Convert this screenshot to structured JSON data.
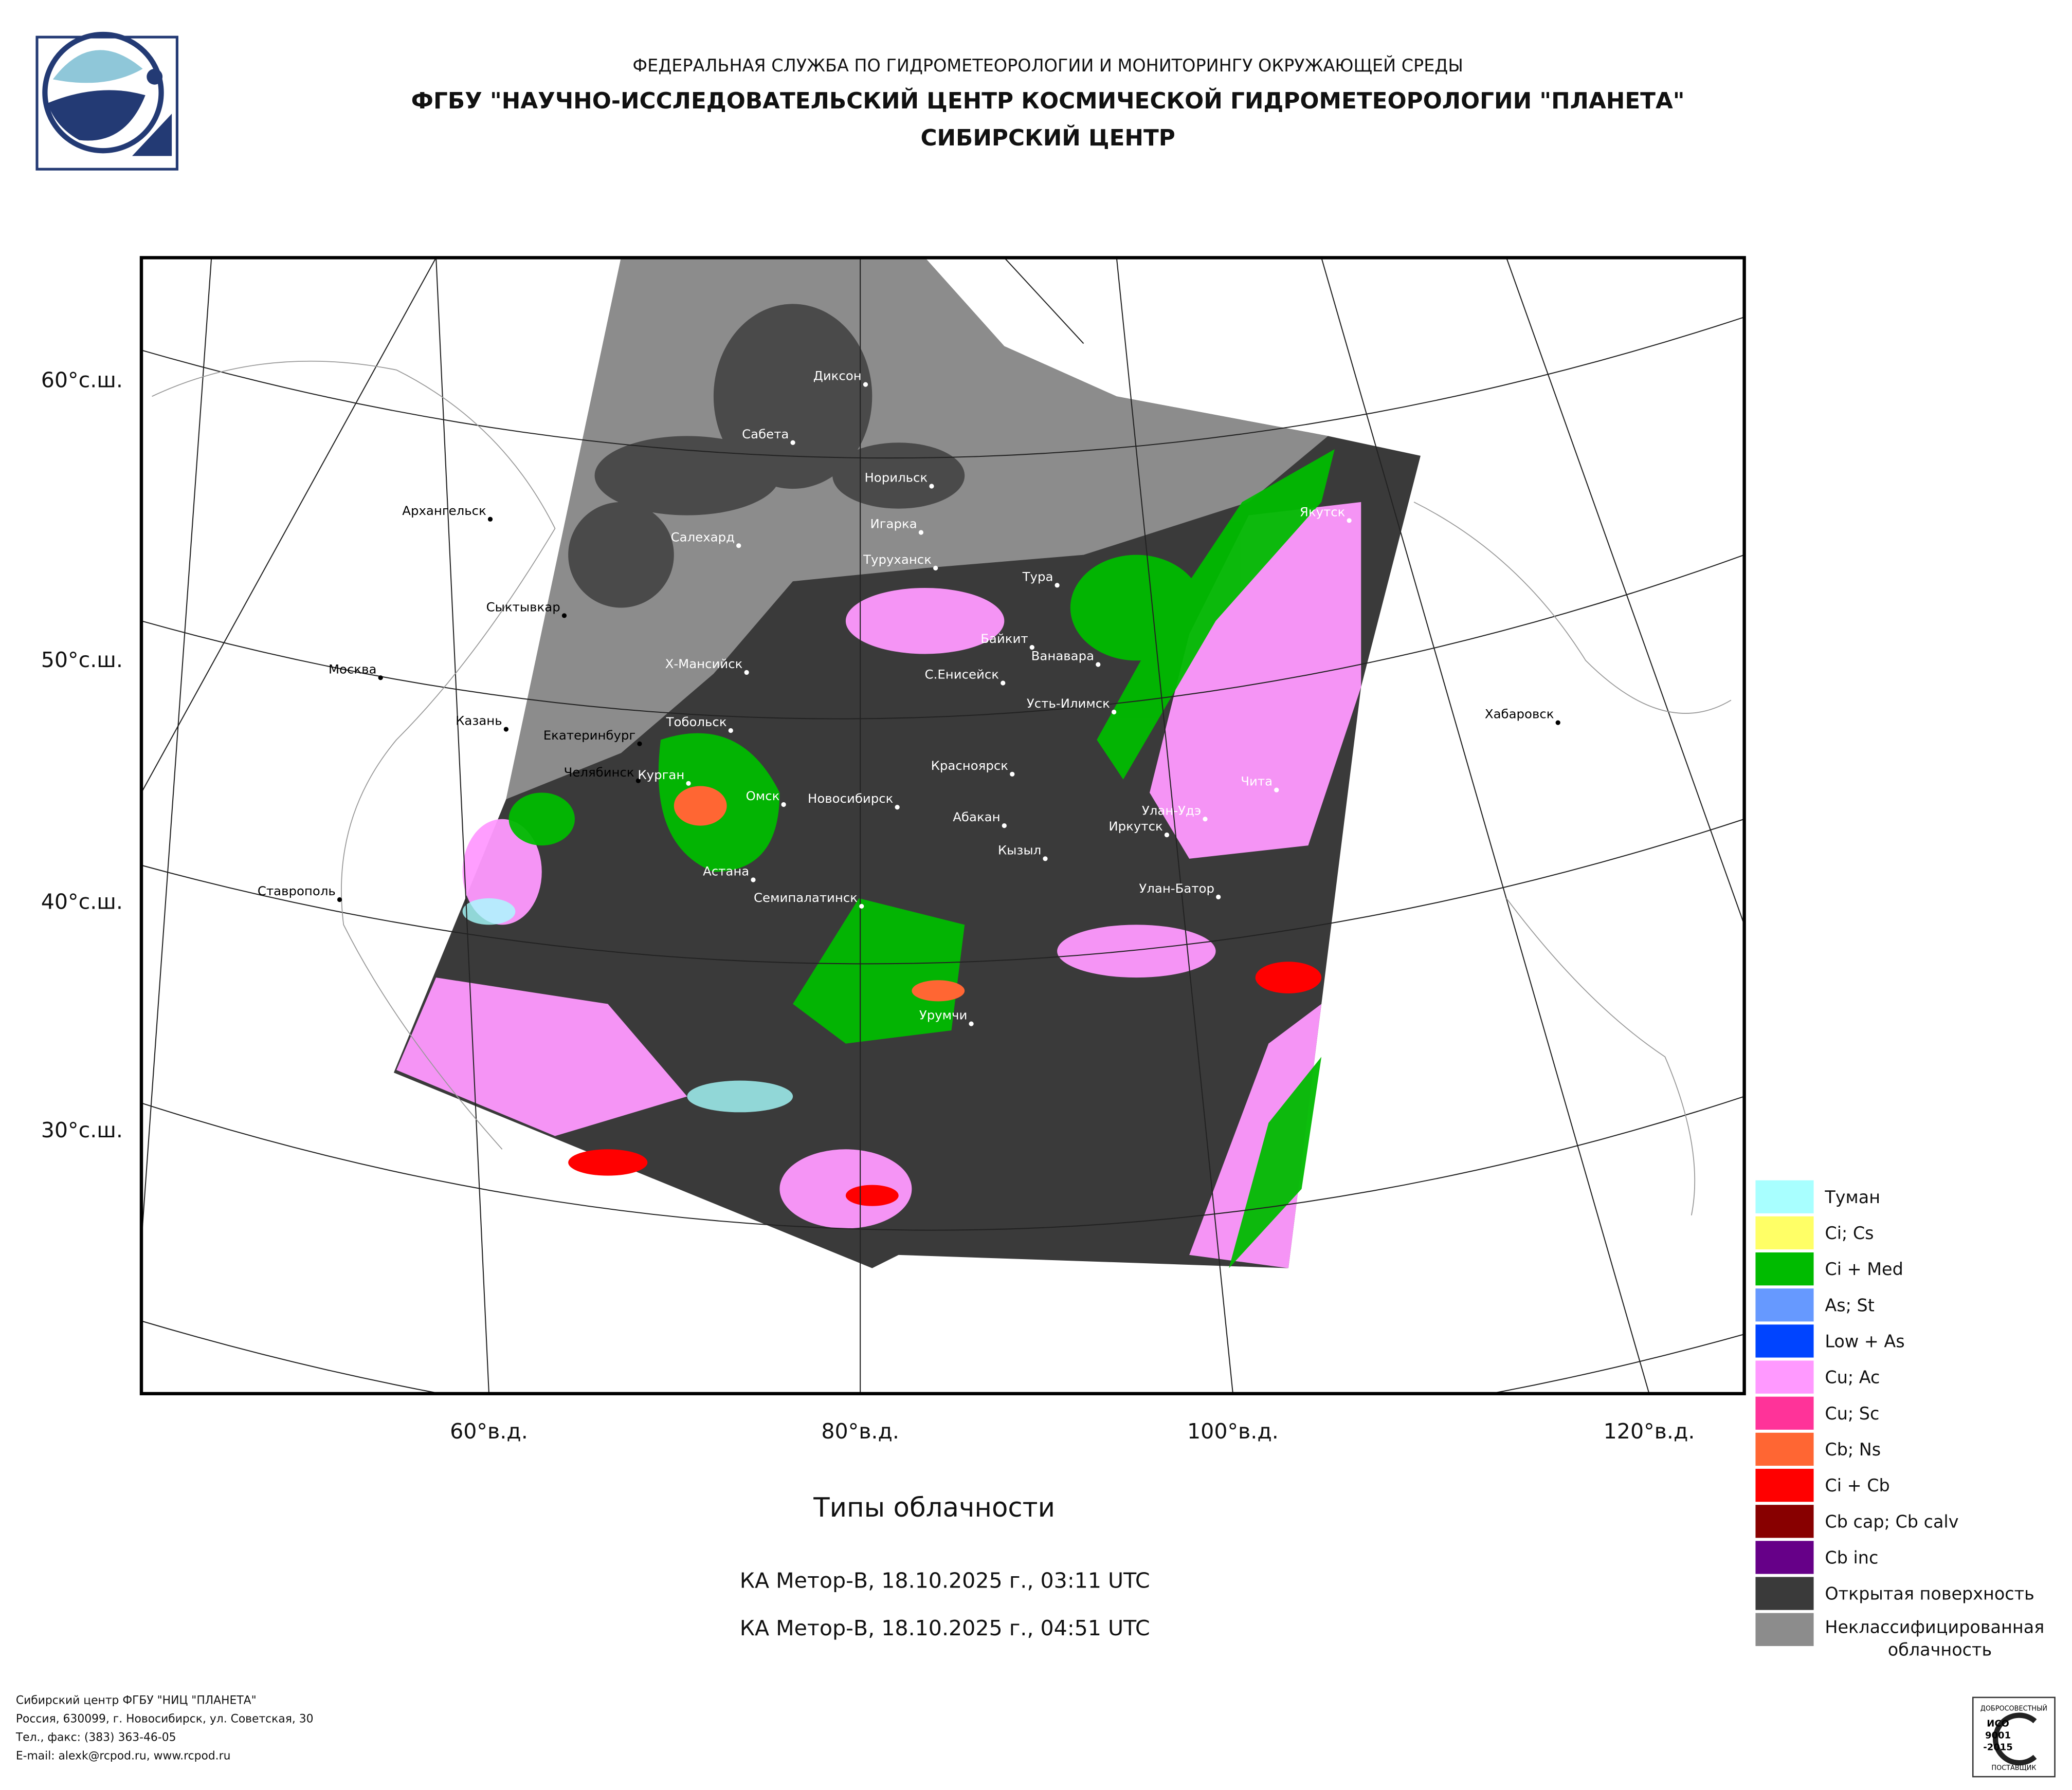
{
  "header": {
    "lines": [
      "ФЕДЕРАЛЬНАЯ СЛУЖБА ПО ГИДРОМЕТЕОРОЛОГИИ И МОНИТОРИНГУ ОКРУЖАЮЩЕЙ СРЕДЫ",
      "ФГБУ \"НАУЧНО-ИССЛЕДОВАТЕЛЬСКИЙ ЦЕНТР КОСМИЧЕСКОЙ ГИДРОМЕТЕОРОЛОГИИ \"ПЛАНЕТА\"",
      "СИБИРСКИЙ ЦЕНТР"
    ]
  },
  "map": {
    "lat_labels": [
      "60°с.ш.",
      "50°с.ш.",
      "40°с.ш.",
      "30°с.ш."
    ],
    "lon_labels": [
      "60°в.д.",
      "80°в.д.",
      "100°в.д.",
      "120°в.д."
    ],
    "cities": [
      "Диксон",
      "Сабета",
      "Норильск",
      "Игарка",
      "Туруханск",
      "Салехард",
      "Архангельск",
      "Сыктывкар",
      "Москва",
      "Х-Мансийск",
      "Казань",
      "Екатеринбург",
      "Тобольск",
      "Челябинск",
      "Курган",
      "Омск",
      "Новосибирск",
      "Астана",
      "Семипалатинск",
      "Урумчи",
      "Красноярск",
      "Абакан",
      "Кызыл",
      "Тура",
      "Байкит",
      "Ванавара",
      "С.Енисейск",
      "Усть-Илимск",
      "Якутск",
      "Чита",
      "Улан-Удэ",
      "Иркутск",
      "Улан-Батор",
      "Хабаровск",
      "Ставрополь"
    ]
  },
  "title": "Типы облачности",
  "passes": [
    "КА Meтор-В, 18.10.2025 г., 03:11 UTC",
    "КА Meтор-В, 18.10.2025 г., 04:51 UTC"
  ],
  "legend": [
    {
      "label": "Туман",
      "color": "#a8ffff"
    },
    {
      "label": "Ci; Cs",
      "color": "#ffff66"
    },
    {
      "label": "Ci + Med",
      "color": "#00bb00"
    },
    {
      "label": "As; St",
      "color": "#6699ff"
    },
    {
      "label": "Low + As",
      "color": "#0044ff"
    },
    {
      "label": "Cu; Ac",
      "color": "#ff99ff"
    },
    {
      "label": "Cu; Sc",
      "color": "#ff3399"
    },
    {
      "label": "Cb; Ns",
      "color": "#ff6633"
    },
    {
      "label": "Ci + Cb",
      "color": "#ff0000"
    },
    {
      "label": "Cb cap; Cb calv",
      "color": "#880000"
    },
    {
      "label": "Cb inc",
      "color": "#660088"
    },
    {
      "label": "Открытая поверхность",
      "color": "#3a3a3a"
    },
    {
      "label_lines": [
        "Неклассифицированная",
        "облачность"
      ],
      "color": "#8c8c8c"
    }
  ],
  "footer": [
    "Сибирский центр ФГБУ \"НИЦ \"ПЛАНЕТА\"",
    "Россия, 630099, г. Новосибирск, ул. Советская, 30",
    "Тел., факс: (383) 363-46-05",
    "E-mail: alexk@rcpod.ru, www.rcpod.ru"
  ],
  "certificate": {
    "top": "ДОБРОСОВЕСТНЫЙ",
    "lines": [
      "ИСО",
      "9001",
      "-2015"
    ],
    "bottom": "ПОСТАВЩИК"
  }
}
